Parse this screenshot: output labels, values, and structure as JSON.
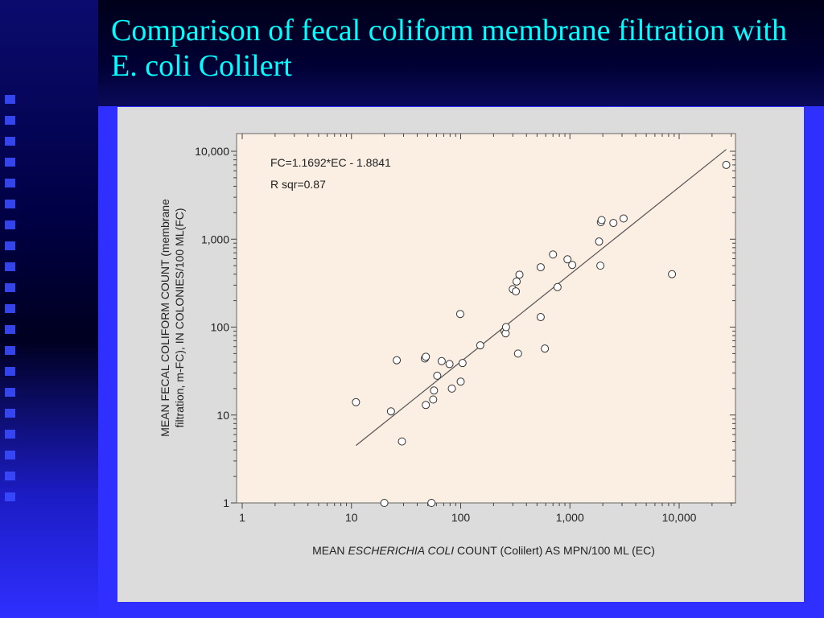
{
  "slide": {
    "title": "Comparison of fecal coliform membrane filtration with E. coli Colilert"
  },
  "colors": {
    "background": "#2f2fff",
    "title": "#00ffff",
    "plot_area": "#fbeee2",
    "figure_bg": "#dcdcdc"
  },
  "chart_data": {
    "type": "scatter",
    "title": "",
    "xlabel_prefix": "MEAN ",
    "xlabel_italic": "ESCHERICHIA COLI",
    "xlabel_suffix": " COUNT (Colilert) AS MPN/100 ML (EC)",
    "ylabel_line1": "MEAN FECAL COLIFORM COUNT (membrane",
    "ylabel_line2": "filtration, m-FC), IN COLONIES/100 ML(FC)",
    "xscale": "log",
    "yscale": "log",
    "xlim": [
      1,
      50000
    ],
    "ylim": [
      1,
      20000
    ],
    "xticks": [
      1,
      10,
      100,
      1000,
      10000
    ],
    "xtick_labels": [
      "1",
      "10",
      "100",
      "1,000",
      "10,000"
    ],
    "yticks": [
      1,
      10,
      100,
      1000,
      10000
    ],
    "ytick_labels": [
      "1",
      "10",
      "100",
      "1,000",
      "10,000"
    ],
    "annotations": [
      "FC=1.1692*EC - 1.8841",
      "R sqr=0.87"
    ],
    "fit_line": {
      "x": [
        11,
        27000
      ],
      "y": [
        4.5,
        10500
      ]
    },
    "points": [
      [
        11,
        14
      ],
      [
        20,
        1
      ],
      [
        23,
        11
      ],
      [
        26,
        42
      ],
      [
        29,
        5
      ],
      [
        47,
        44
      ],
      [
        48,
        46
      ],
      [
        48,
        13
      ],
      [
        54,
        1
      ],
      [
        56,
        15
      ],
      [
        57,
        19
      ],
      [
        61,
        28
      ],
      [
        67,
        41
      ],
      [
        79,
        38
      ],
      [
        83,
        20
      ],
      [
        99,
        141
      ],
      [
        100,
        24
      ],
      [
        104,
        39
      ],
      [
        151,
        62
      ],
      [
        252,
        90
      ],
      [
        258,
        85
      ],
      [
        260,
        100
      ],
      [
        300,
        270
      ],
      [
        320,
        255
      ],
      [
        325,
        330
      ],
      [
        335,
        50
      ],
      [
        345,
        395
      ],
      [
        540,
        480
      ],
      [
        540,
        130
      ],
      [
        590,
        57
      ],
      [
        700,
        670
      ],
      [
        770,
        285
      ],
      [
        950,
        590
      ],
      [
        1050,
        510
      ],
      [
        1850,
        940
      ],
      [
        1900,
        500
      ],
      [
        1920,
        1560
      ],
      [
        1950,
        1650
      ],
      [
        2500,
        1530
      ],
      [
        3100,
        1720
      ],
      [
        8600,
        400
      ],
      [
        27000,
        7000
      ]
    ],
    "grid": false,
    "legend": "none"
  }
}
